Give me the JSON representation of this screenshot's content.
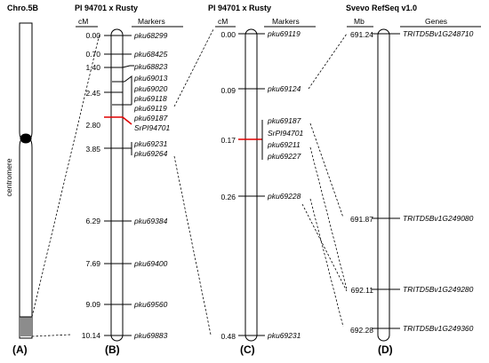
{
  "panelA": {
    "title": "Chro.5B",
    "centromere": "centromere",
    "label": "(A)"
  },
  "panelB": {
    "title": "PI 94701 x Rusty",
    "unit": "cM",
    "markers_header": "Markers",
    "label": "(B)",
    "positions": [
      "0.00",
      "0.70",
      "1.40",
      "2.45",
      "2.80",
      "3.85",
      "6.29",
      "7.69",
      "9.09",
      "10.14"
    ],
    "markers": [
      "pku68299",
      "pku68425",
      "pku68823",
      "pku69013",
      "pku69020",
      "pku69118",
      "pku69119",
      "pku69187",
      "SrPI94701",
      "pku69231",
      "pku69264",
      "pku69384",
      "pku69400",
      "pku69560",
      "pku69883"
    ]
  },
  "panelC": {
    "title": "PI 94701 x Rusty",
    "unit": "cM",
    "markers_header": "Markers",
    "label": "(C)",
    "positions": [
      "0.00",
      "0.09",
      "0.17",
      "0.26",
      "0.48"
    ],
    "markers": [
      "pku69119",
      "pku69124",
      "pku69187",
      "SrPI94701",
      "pku69211",
      "pku69227",
      "pku69228",
      "pku69231"
    ]
  },
  "panelD": {
    "title": "Svevo RefSeq v1.0",
    "unit": "Mb",
    "genes_header": "Genes",
    "label": "(D)",
    "positions": [
      "691.24",
      "691.87",
      "692.11",
      "692.28"
    ],
    "genes": [
      "TRITD5Bv1G248710",
      "TRITD5Bv1G249080",
      "TRITD5Bv1G249280",
      "TRITD5Bv1G249360"
    ]
  },
  "colors": {
    "highlight": "#e00000",
    "region": "#8c8c8c",
    "line": "#000000"
  }
}
